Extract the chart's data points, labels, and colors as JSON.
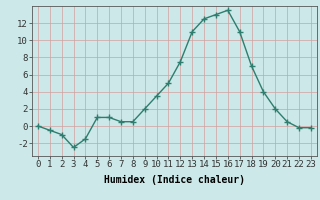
{
  "x": [
    0,
    1,
    2,
    3,
    4,
    5,
    6,
    7,
    8,
    9,
    10,
    11,
    12,
    13,
    14,
    15,
    16,
    17,
    18,
    19,
    20,
    21,
    22,
    23
  ],
  "y": [
    0,
    -0.5,
    -1,
    -2.5,
    -1.5,
    1,
    1,
    0.5,
    0.5,
    2,
    3.5,
    5,
    7.5,
    11,
    12.5,
    13,
    13.5,
    11,
    7,
    4,
    2,
    0.5,
    -0.2,
    -0.2
  ],
  "line_color": "#2e7d6e",
  "marker": "+",
  "markersize": 4,
  "linewidth": 1.0,
  "bg_color": "#cce8e8",
  "grid_color": "#d4a0a0",
  "xlabel": "Humidex (Indice chaleur)",
  "ylim": [
    -3.5,
    14
  ],
  "xlim": [
    -0.5,
    23.5
  ],
  "yticks": [
    -2,
    0,
    2,
    4,
    6,
    8,
    10,
    12
  ],
  "xticks": [
    0,
    1,
    2,
    3,
    4,
    5,
    6,
    7,
    8,
    9,
    10,
    11,
    12,
    13,
    14,
    15,
    16,
    17,
    18,
    19,
    20,
    21,
    22,
    23
  ],
  "xlabel_fontsize": 7,
  "tick_fontsize": 6.5
}
